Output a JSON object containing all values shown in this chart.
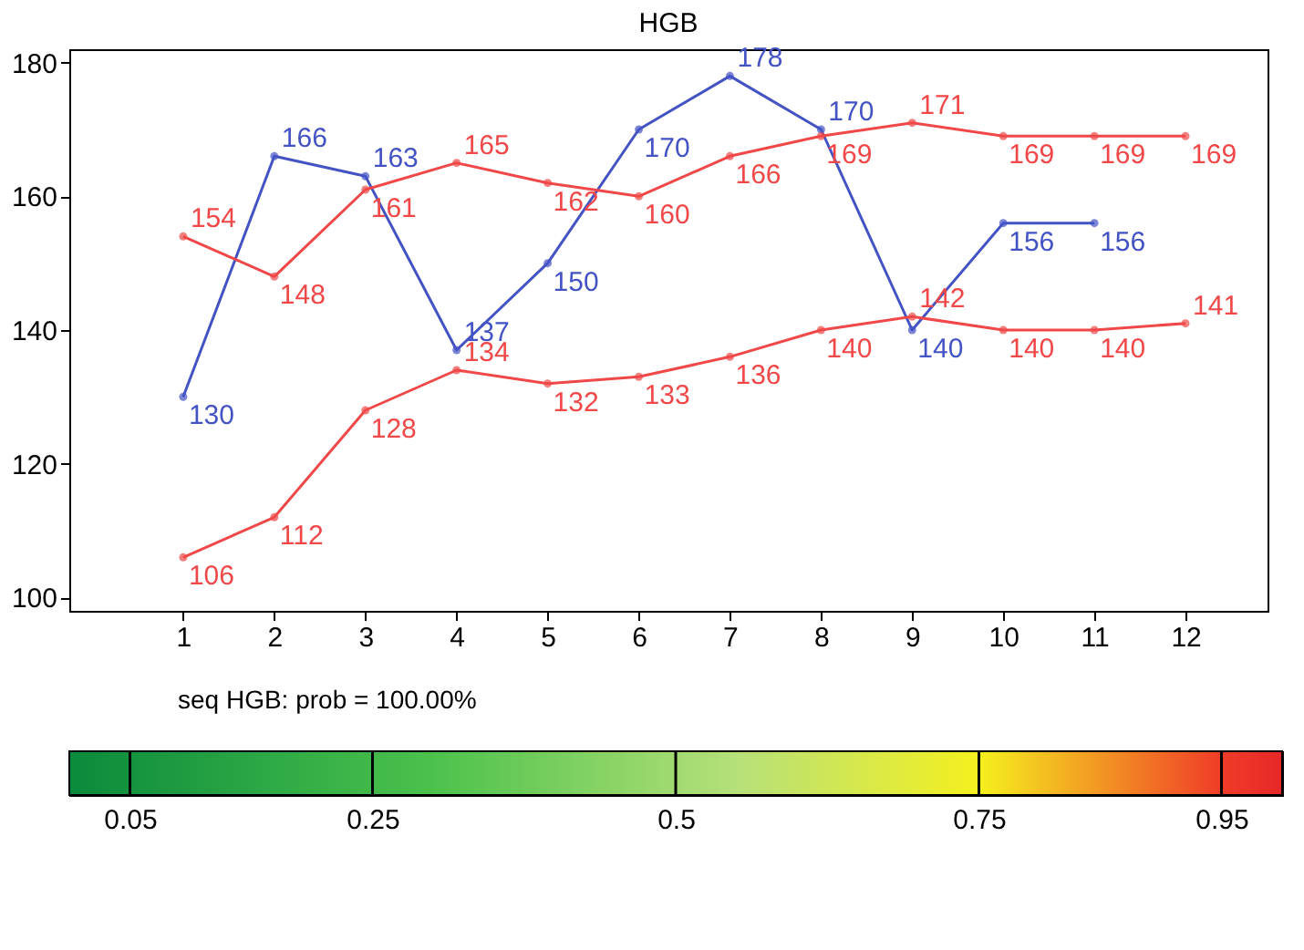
{
  "chart_data": {
    "type": "line",
    "title": "HGB",
    "x": [
      1,
      2,
      3,
      4,
      5,
      6,
      7,
      8,
      9,
      10,
      11,
      12
    ],
    "series": [
      {
        "color": "#4353c4",
        "values": [
          130,
          166,
          163,
          137,
          150,
          170,
          178,
          170,
          140,
          156,
          156,
          null
        ]
      },
      {
        "color": "#f04848",
        "values": [
          154,
          148,
          161,
          165,
          162,
          160,
          166,
          169,
          171,
          169,
          169,
          169
        ]
      },
      {
        "color": "#f04848",
        "values": [
          106,
          112,
          128,
          134,
          132,
          133,
          136,
          140,
          142,
          140,
          140,
          141
        ]
      }
    ],
    "xlim": [
      -0.25,
      12.9
    ],
    "xticks": [
      1,
      2,
      3,
      4,
      5,
      6,
      7,
      8,
      9,
      10,
      11,
      12
    ],
    "ylim": [
      98,
      182
    ],
    "yticks": [
      100,
      120,
      140,
      160,
      180
    ],
    "data_labels": true,
    "marker": "circle",
    "line_style": "solid",
    "grid": false,
    "legend": false,
    "annotations": [
      "seq HGB: prob = 100.00%"
    ],
    "clim": [
      0,
      1
    ],
    "cticks": [
      0.05,
      0.25,
      {
        "value": 0.5,
        "label": "0.5"
      },
      0.75,
      0.95
    ]
  }
}
